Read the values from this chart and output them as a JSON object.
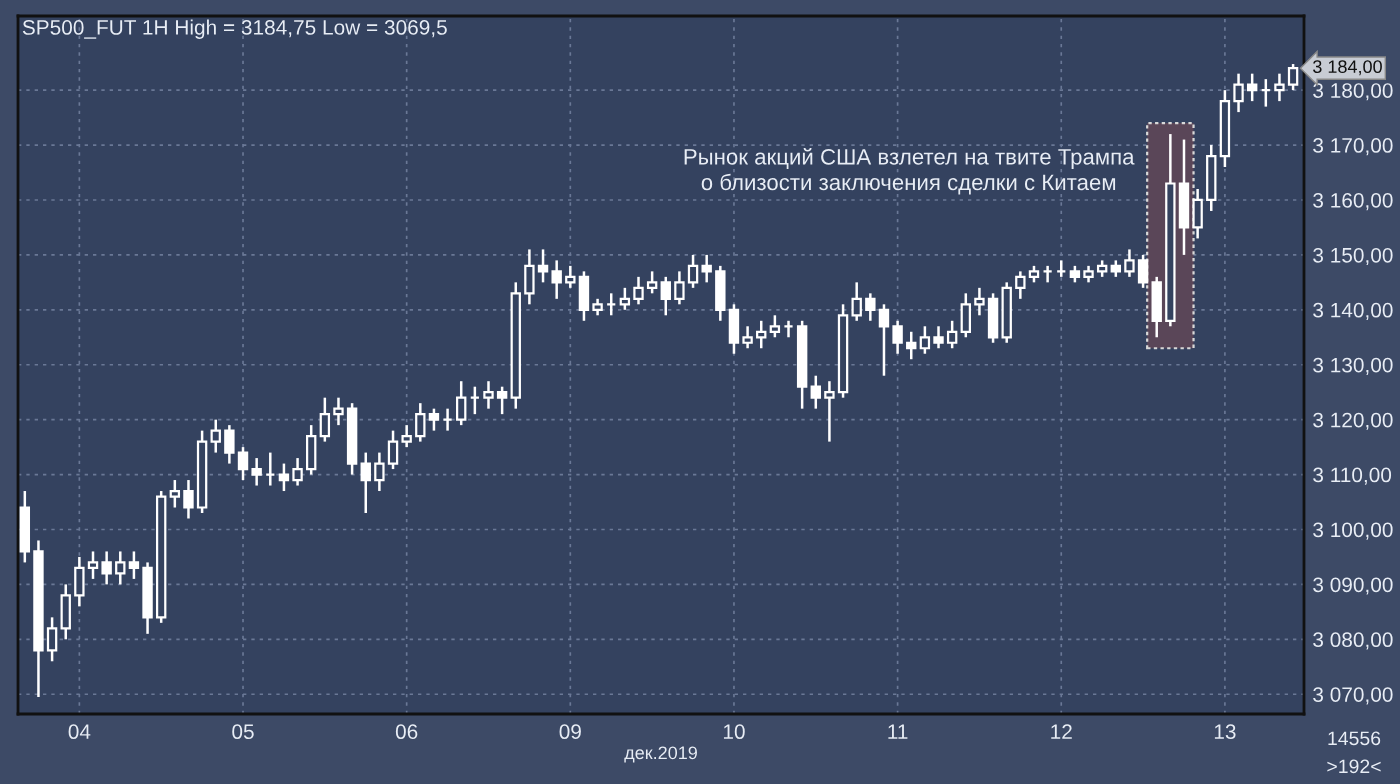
{
  "chart_data": {
    "type": "candlestick",
    "title": "SP500_FUT 1H High = 3184,75 Low = 3069,5",
    "xlabel": "дек.2019",
    "categories": [
      null,
      null,
      null,
      null,
      "04",
      null,
      null,
      null,
      null,
      null,
      null,
      null,
      null,
      null,
      null,
      null,
      "05",
      null,
      null,
      null,
      null,
      null,
      null,
      null,
      null,
      null,
      null,
      null,
      "06",
      null,
      null,
      null,
      null,
      null,
      null,
      null,
      null,
      null,
      null,
      null,
      "09",
      null,
      null,
      null,
      null,
      null,
      null,
      null,
      null,
      null,
      null,
      null,
      "10",
      null,
      null,
      null,
      null,
      null,
      null,
      null,
      null,
      null,
      null,
      null,
      "11",
      null,
      null,
      null,
      null,
      null,
      null,
      null,
      null,
      null,
      null,
      null,
      "12",
      null,
      null,
      null,
      null,
      null,
      null,
      null,
      null,
      null,
      null,
      null,
      "13",
      null,
      null,
      null,
      null,
      null
    ],
    "ohlc": [
      [
        3104,
        3107,
        3094,
        3096
      ],
      [
        3096,
        3098,
        3069.5,
        3078
      ],
      [
        3078,
        3084,
        3076,
        3082
      ],
      [
        3082,
        3090,
        3080,
        3088
      ],
      [
        3088,
        3095,
        3086,
        3093
      ],
      [
        3093,
        3096,
        3091,
        3094
      ],
      [
        3094,
        3096,
        3090,
        3092
      ],
      [
        3092,
        3096,
        3090,
        3094
      ],
      [
        3094,
        3096,
        3091,
        3093
      ],
      [
        3093,
        3094,
        3081,
        3084
      ],
      [
        3084,
        3107,
        3083,
        3106
      ],
      [
        3106,
        3109,
        3104,
        3107
      ],
      [
        3107,
        3109,
        3102,
        3104
      ],
      [
        3104,
        3118,
        3103,
        3116
      ],
      [
        3116,
        3120,
        3114,
        3118
      ],
      [
        3118,
        3119,
        3112,
        3114
      ],
      [
        3114,
        3115,
        3109,
        3111
      ],
      [
        3111,
        3113,
        3108,
        3110
      ],
      [
        3110,
        3114,
        3108,
        3110
      ],
      [
        3110,
        3112,
        3107,
        3109
      ],
      [
        3109,
        3113,
        3108,
        3111
      ],
      [
        3111,
        3119,
        3110,
        3117
      ],
      [
        3117,
        3124,
        3116,
        3121
      ],
      [
        3121,
        3124,
        3119,
        3122
      ],
      [
        3122,
        3123,
        3110,
        3112
      ],
      [
        3112,
        3114,
        3103,
        3109
      ],
      [
        3109,
        3114,
        3107,
        3112
      ],
      [
        3112,
        3118,
        3111,
        3116
      ],
      [
        3116,
        3119,
        3115,
        3117
      ],
      [
        3117,
        3123,
        3116,
        3121
      ],
      [
        3121,
        3122,
        3118,
        3120
      ],
      [
        3120,
        3122,
        3118,
        3120
      ],
      [
        3120,
        3127,
        3119,
        3124
      ],
      [
        3124,
        3126,
        3121,
        3124
      ],
      [
        3124,
        3127,
        3122,
        3125
      ],
      [
        3125,
        3126,
        3121,
        3124
      ],
      [
        3124,
        3145,
        3122,
        3143
      ],
      [
        3143,
        3151,
        3141,
        3148
      ],
      [
        3148,
        3151,
        3145,
        3147
      ],
      [
        3147,
        3149,
        3142,
        3145
      ],
      [
        3145,
        3148,
        3144,
        3146
      ],
      [
        3146,
        3147,
        3138,
        3140
      ],
      [
        3140,
        3142,
        3139,
        3141
      ],
      [
        3141,
        3143,
        3139,
        3141
      ],
      [
        3141,
        3144,
        3140,
        3142
      ],
      [
        3142,
        3146,
        3141,
        3144
      ],
      [
        3144,
        3147,
        3143,
        3145
      ],
      [
        3145,
        3146,
        3139,
        3142
      ],
      [
        3142,
        3147,
        3141,
        3145
      ],
      [
        3145,
        3150,
        3144,
        3148
      ],
      [
        3148,
        3150,
        3145,
        3147
      ],
      [
        3147,
        3148,
        3138,
        3140
      ],
      [
        3140,
        3141,
        3132,
        3134
      ],
      [
        3134,
        3137,
        3133,
        3135
      ],
      [
        3135,
        3138,
        3133,
        3136
      ],
      [
        3136,
        3139,
        3135,
        3137
      ],
      [
        3137,
        3138,
        3135,
        3137
      ],
      [
        3137,
        3138,
        3122,
        3126
      ],
      [
        3126,
        3128,
        3122,
        3124
      ],
      [
        3124,
        3127,
        3116,
        3125
      ],
      [
        3125,
        3141,
        3124,
        3139
      ],
      [
        3139,
        3145,
        3138,
        3142
      ],
      [
        3142,
        3143,
        3138,
        3140
      ],
      [
        3140,
        3141,
        3128,
        3137
      ],
      [
        3137,
        3138,
        3132,
        3134
      ],
      [
        3134,
        3136,
        3131,
        3133
      ],
      [
        3133,
        3137,
        3132,
        3135
      ],
      [
        3135,
        3137,
        3133,
        3134
      ],
      [
        3134,
        3138,
        3133,
        3136
      ],
      [
        3136,
        3143,
        3135,
        3141
      ],
      [
        3141,
        3144,
        3139,
        3142
      ],
      [
        3142,
        3143,
        3134,
        3135
      ],
      [
        3135,
        3145,
        3134,
        3144
      ],
      [
        3144,
        3147,
        3142,
        3146
      ],
      [
        3146,
        3148,
        3145,
        3147
      ],
      [
        3147,
        3148,
        3145,
        3147
      ],
      [
        3147,
        3149,
        3146,
        3147
      ],
      [
        3147,
        3148,
        3145,
        3146
      ],
      [
        3146,
        3148,
        3145,
        3147
      ],
      [
        3147,
        3149,
        3146,
        3148
      ],
      [
        3148,
        3149,
        3146,
        3147
      ],
      [
        3147,
        3151,
        3146,
        3149
      ],
      [
        3149,
        3150,
        3144,
        3145
      ],
      [
        3145,
        3146,
        3135,
        3138
      ],
      [
        3138,
        3172,
        3137,
        3163
      ],
      [
        3163,
        3171,
        3150,
        3155
      ],
      [
        3155,
        3162,
        3153,
        3160
      ],
      [
        3160,
        3170,
        3158,
        3168
      ],
      [
        3168,
        3180,
        3166,
        3178
      ],
      [
        3178,
        3183,
        3176,
        3181
      ],
      [
        3181,
        3183,
        3178,
        3180
      ],
      [
        3180,
        3182,
        3177,
        3180
      ],
      [
        3180,
        3183,
        3178,
        3181
      ],
      [
        3181,
        3184.75,
        3180,
        3184
      ]
    ],
    "ylim": [
      3066.4,
      3193.5
    ],
    "yticks": [
      {
        "value": 3070,
        "label": "3 070,00"
      },
      {
        "value": 3080,
        "label": "3 080,00"
      },
      {
        "value": 3090,
        "label": "3 090,00"
      },
      {
        "value": 3100,
        "label": "3 100,00"
      },
      {
        "value": 3110,
        "label": "3 110,00"
      },
      {
        "value": 3120,
        "label": "3 120,00"
      },
      {
        "value": 3130,
        "label": "3 130,00"
      },
      {
        "value": 3140,
        "label": "3 140,00"
      },
      {
        "value": 3150,
        "label": "3 150,00"
      },
      {
        "value": 3160,
        "label": "3 160,00"
      },
      {
        "value": 3170,
        "label": "3 170,00"
      },
      {
        "value": 3180,
        "label": "3 180,00"
      }
    ],
    "grid": true,
    "annotations": [
      "Рынок акций США взлетел на твите Трампа\nо близости заключения сделки с Китаем",
      "3 184,00",
      "14556",
      ">192<"
    ]
  }
}
